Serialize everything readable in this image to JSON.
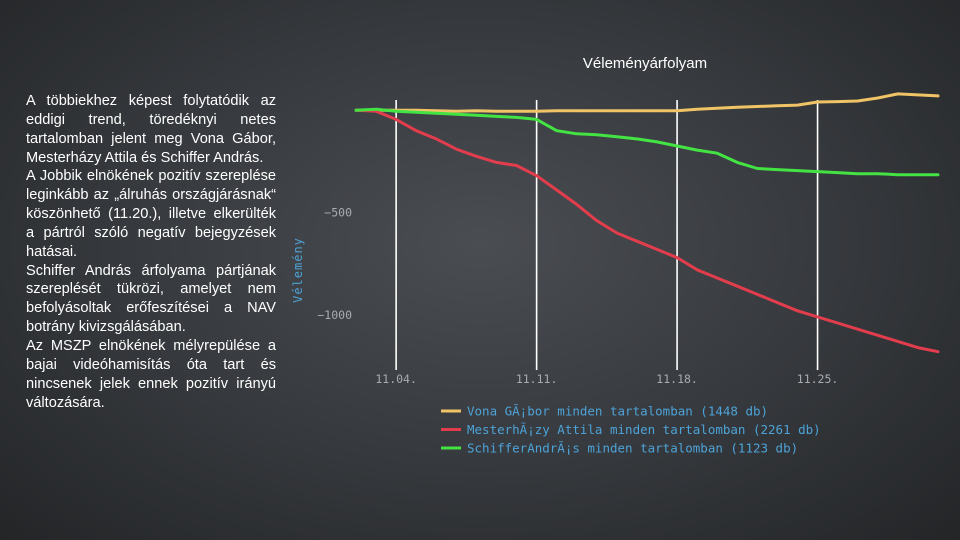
{
  "slide": {
    "title": "Véleményárfolyam",
    "paragraphs": [
      "A többiekhez képest folytatódik az eddigi trend, töredéknyi netes tartalomban jelent meg Vona Gábor, Mesterházy Attila és Schiffer András.",
      "A Jobbik elnökének pozitív szereplése leginkább az „álruhás országjárásnak“ köszönhető (11.20.), illetve elkerülték a pártról szóló negatív bejegyzések hatásai.",
      "Schiffer András árfolyama pártjának szereplését tükrözi, amelyet nem befolyásoltak erőfeszítései a NAV botrány kivizsgálásában.",
      "Az MSZP elnökének mélyrepülése a bajai videóhamisítás óta tart és nincsenek jelek ennek pozitív irányú változására."
    ]
  },
  "chart_data": {
    "type": "line",
    "ylabel": "Vélemény",
    "y_ticks": [
      -500,
      -1000
    ],
    "x_ticks": [
      "11.04.",
      "11.11.",
      "11.18.",
      "11.25."
    ],
    "x_tick_values": [
      4,
      11,
      18,
      25
    ],
    "ylim": [
      -1250,
      50
    ],
    "xlim": [
      2,
      31.5
    ],
    "x_unit": "day of month (November)",
    "vertical_gridlines_at_ticks": true,
    "legend_position": "bottom",
    "series": [
      {
        "name": "Vona GÃ¡bor minden tartalomban (1448 db)",
        "color": "#f0c466",
        "points": [
          [
            2,
            0
          ],
          [
            3,
            0
          ],
          [
            4,
            0
          ],
          [
            5,
            0
          ],
          [
            6,
            -3
          ],
          [
            7,
            -5
          ],
          [
            8,
            -3
          ],
          [
            9,
            -5
          ],
          [
            10,
            -5
          ],
          [
            11,
            -5
          ],
          [
            12,
            -3
          ],
          [
            13,
            -3
          ],
          [
            14,
            -3
          ],
          [
            15,
            -3
          ],
          [
            16,
            -3
          ],
          [
            17,
            -3
          ],
          [
            18,
            -3
          ],
          [
            19,
            5
          ],
          [
            20,
            10
          ],
          [
            21,
            15
          ],
          [
            22,
            18
          ],
          [
            23,
            22
          ],
          [
            24,
            25
          ],
          [
            25,
            40
          ],
          [
            26,
            42
          ],
          [
            27,
            45
          ],
          [
            28,
            60
          ],
          [
            29,
            80
          ],
          [
            30,
            75
          ],
          [
            31,
            70
          ]
        ]
      },
      {
        "name": "MesterhÃ¡zy Attila minden tartalomban (2261 db)",
        "color": "#e23d4c",
        "points": [
          [
            2,
            0
          ],
          [
            3,
            -5
          ],
          [
            4,
            -45
          ],
          [
            5,
            -100
          ],
          [
            6,
            -140
          ],
          [
            7,
            -190
          ],
          [
            8,
            -225
          ],
          [
            9,
            -255
          ],
          [
            10,
            -270
          ],
          [
            11,
            -320
          ],
          [
            12,
            -390
          ],
          [
            13,
            -460
          ],
          [
            14,
            -540
          ],
          [
            15,
            -600
          ],
          [
            16,
            -640
          ],
          [
            17,
            -680
          ],
          [
            18,
            -720
          ],
          [
            19,
            -780
          ],
          [
            20,
            -820
          ],
          [
            21,
            -860
          ],
          [
            22,
            -900
          ],
          [
            23,
            -940
          ],
          [
            24,
            -980
          ],
          [
            25,
            -1010
          ],
          [
            26,
            -1040
          ],
          [
            27,
            -1070
          ],
          [
            28,
            -1100
          ],
          [
            29,
            -1130
          ],
          [
            30,
            -1160
          ],
          [
            31,
            -1180
          ]
        ]
      },
      {
        "name": "SchifferAndrÃ¡s minden tartalomban (1123 db)",
        "color": "#44e344",
        "points": [
          [
            2,
            0
          ],
          [
            3,
            5
          ],
          [
            4,
            -5
          ],
          [
            5,
            -10
          ],
          [
            6,
            -15
          ],
          [
            7,
            -20
          ],
          [
            8,
            -25
          ],
          [
            9,
            -30
          ],
          [
            10,
            -35
          ],
          [
            11,
            -45
          ],
          [
            12,
            -100
          ],
          [
            13,
            -115
          ],
          [
            14,
            -120
          ],
          [
            15,
            -130
          ],
          [
            16,
            -140
          ],
          [
            17,
            -155
          ],
          [
            18,
            -175
          ],
          [
            19,
            -195
          ],
          [
            20,
            -210
          ],
          [
            21,
            -255
          ],
          [
            22,
            -285
          ],
          [
            23,
            -290
          ],
          [
            24,
            -295
          ],
          [
            25,
            -300
          ],
          [
            26,
            -305
          ],
          [
            27,
            -310
          ],
          [
            28,
            -310
          ],
          [
            29,
            -315
          ],
          [
            30,
            -315
          ],
          [
            31,
            -315
          ]
        ]
      }
    ]
  }
}
